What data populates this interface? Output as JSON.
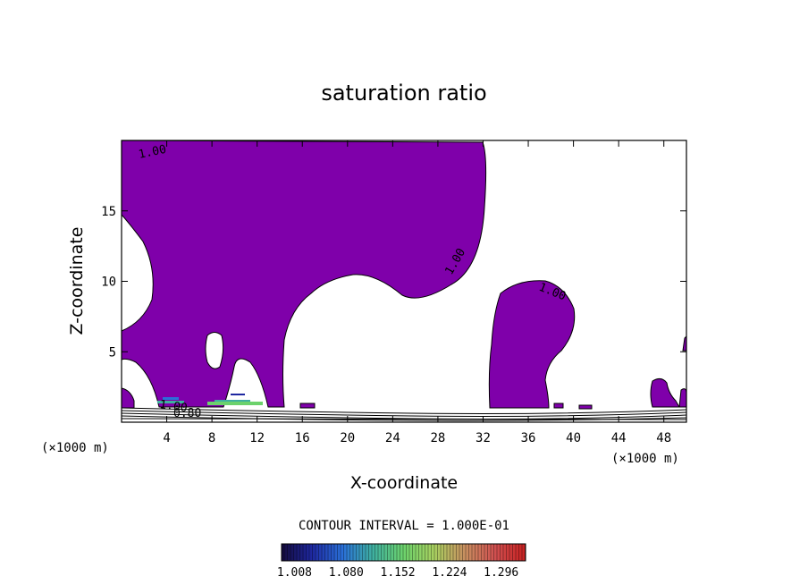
{
  "chart_data": {
    "type": "contour",
    "title": "saturation ratio",
    "xlabel": "X-coordinate",
    "ylabel": "Z-coordinate",
    "x_unit": "(×1000 m)",
    "y_unit": "(×1000 m)",
    "xlim": [
      0,
      50
    ],
    "ylim": [
      0,
      20
    ],
    "x_ticks": [
      4,
      8,
      12,
      16,
      20,
      24,
      28,
      32,
      36,
      40,
      44,
      48
    ],
    "y_ticks": [
      5,
      10,
      15
    ],
    "contour_labels": [
      "1.00",
      "1.00",
      "1.00",
      "1.00",
      "0.80"
    ],
    "contour_interval_text": "CONTOUR INTERVAL = 1.000E-01",
    "colorbar_ticks": [
      "1.008",
      "1.080",
      "1.152",
      "1.224",
      "1.296"
    ],
    "colorbar_range": [
      0.99,
      1.33
    ],
    "colors": {
      "fill": "#7f00aa",
      "outline": "#000000",
      "colorbar": [
        "#140a3c",
        "#1e28a0",
        "#2a70d8",
        "#3fb0a0",
        "#6cd26c",
        "#a8d060",
        "#c89060",
        "#d05050",
        "#c82020"
      ]
    },
    "grid": false
  }
}
